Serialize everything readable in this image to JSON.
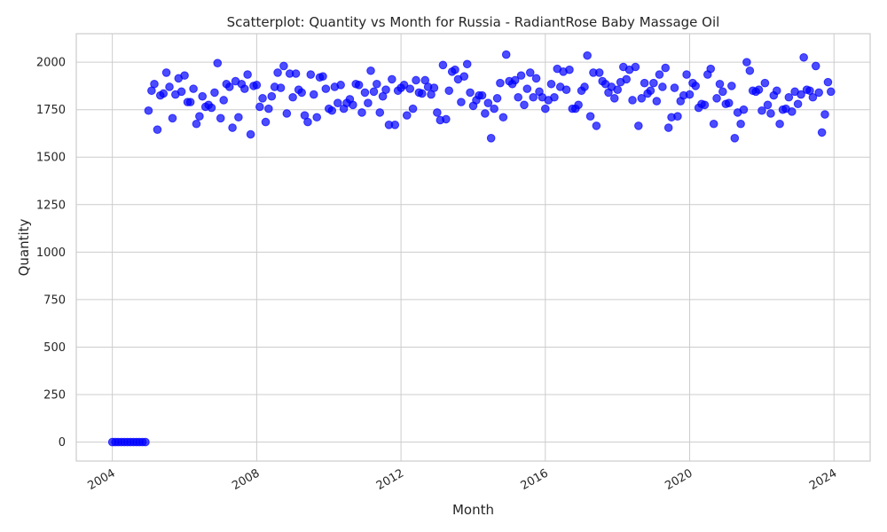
{
  "chart_data": {
    "type": "scatter",
    "title": "Scatterplot: Quantity vs Month for Russia - RadiantRose Baby Massage Oil",
    "xlabel": "Month",
    "ylabel": "Quantity",
    "xlim": [
      "2003-01-01",
      "2025-01-01"
    ],
    "ylim": [
      -100,
      2150
    ],
    "x_ticks": [
      "2004",
      "2008",
      "2012",
      "2016",
      "2020",
      "2024"
    ],
    "y_ticks": [
      "0",
      "250",
      "500",
      "750",
      "1000",
      "1250",
      "1500",
      "1750",
      "2000"
    ],
    "grid": true,
    "legend": "none",
    "point_color": "#0000ff",
    "series": [
      {
        "start_month": "2004-01",
        "values": [
          0,
          0,
          0,
          0,
          0,
          0,
          0,
          0,
          0,
          0,
          0,
          0,
          1745,
          1850,
          1885,
          1645,
          1825,
          1835,
          1945,
          1870,
          1705,
          1830,
          1915,
          1845,
          1930,
          1790,
          1790,
          1860,
          1675,
          1715,
          1820,
          1765,
          1775,
          1760,
          1840,
          1995,
          1705,
          1800,
          1885,
          1870,
          1655,
          1900,
          1710,
          1885,
          1860,
          1935,
          1620,
          1875,
          1880,
          1765,
          1810,
          1685,
          1755,
          1820,
          1870,
          1945,
          1865,
          1980,
          1730,
          1940,
          1815,
          1940,
          1855,
          1840,
          1720,
          1685,
          1935,
          1830,
          1710,
          1920,
          1925,
          1860,
          1755,
          1745,
          1870,
          1785,
          1880,
          1755,
          1785,
          1805,
          1775,
          1885,
          1880,
          1735,
          1840,
          1785,
          1955,
          1845,
          1885,
          1735,
          1820,
          1855,
          1670,
          1910,
          1670,
          1850,
          1865,
          1880,
          1720,
          1860,
          1755,
          1905,
          1840,
          1835,
          1905,
          1870,
          1830,
          1865,
          1735,
          1695,
          1985,
          1700,
          1850,
          1950,
          1960,
          1910,
          1790,
          1925,
          1990,
          1840,
          1770,
          1800,
          1825,
          1825,
          1730,
          1785,
          1600,
          1755,
          1810,
          1890,
          1710,
          2040,
          1900,
          1885,
          1905,
          1815,
          1930,
          1775,
          1860,
          1945,
          1815,
          1915,
          1845,
          1815,
          1755,
          1800,
          1885,
          1815,
          1965,
          1870,
          1950,
          1855,
          1960,
          1755,
          1755,
          1775,
          1850,
          1870,
          2035,
          1715,
          1945,
          1665,
          1945,
          1900,
          1885,
          1840,
          1870,
          1810,
          1855,
          1895,
          1975,
          1910,
          1960,
          1800,
          1975,
          1665,
          1810,
          1890,
          1835,
          1850,
          1890,
          1795,
          1935,
          1870,
          1970,
          1655,
          1710,
          1865,
          1715,
          1795,
          1825,
          1935,
          1830,
          1890,
          1875,
          1760,
          1780,
          1775,
          1935,
          1965,
          1675,
          1810,
          1885,
          1845,
          1780,
          1785,
          1875,
          1600,
          1735,
          1675,
          1750,
          2000,
          1955,
          1850,
          1845,
          1855,
          1745,
          1890,
          1775,
          1730,
          1825,
          1850,
          1675,
          1750,
          1755,
          1815,
          1740,
          1845,
          1780,
          1830,
          2025,
          1855,
          1850,
          1815,
          1980,
          1840,
          1630,
          1725,
          1895,
          1845
        ]
      }
    ]
  }
}
